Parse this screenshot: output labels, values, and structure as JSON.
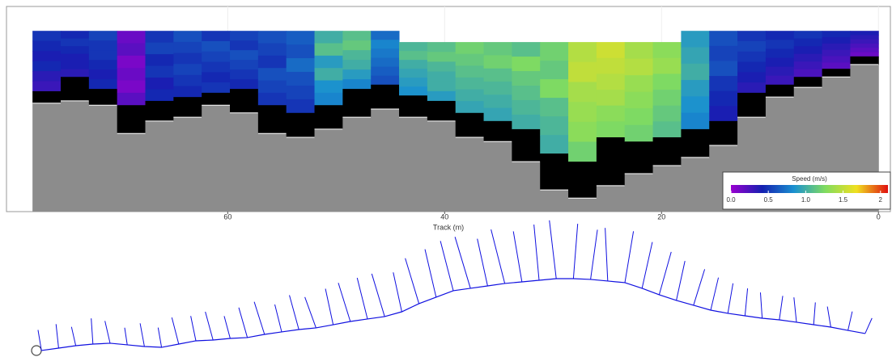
{
  "chart_data": [
    {
      "type": "heatmap",
      "xlabel": "Track (m)",
      "x": [
        76.7,
        74.1,
        71.5,
        68.9,
        66.3,
        63.7,
        61.1,
        58.5,
        55.9,
        53.3,
        50.7,
        48.1,
        45.5,
        42.9,
        40.3,
        37.7,
        35.1,
        32.5,
        29.9,
        27.3,
        24.7,
        22.1,
        19.5,
        16.9,
        14.3,
        11.7,
        9.1,
        6.5,
        3.9,
        1.3
      ],
      "top": [
        0.63,
        0.63,
        0.63,
        0.63,
        0.63,
        0.63,
        0.63,
        0.63,
        0.63,
        0.63,
        0.63,
        0.63,
        0.63,
        0.92,
        0.92,
        0.92,
        0.92,
        0.92,
        0.92,
        0.92,
        0.92,
        0.92,
        0.92,
        0.63,
        0.63,
        0.63,
        0.63,
        0.63,
        0.63,
        0.63
      ],
      "bed": [
        2.19,
        1.82,
        2.13,
        2.55,
        2.44,
        2.34,
        2.23,
        2.13,
        2.55,
        2.75,
        2.55,
        2.13,
        2.02,
        2.3,
        2.44,
        2.75,
        2.96,
        3.17,
        3.8,
        4.01,
        3.38,
        3.49,
        3.38,
        3.17,
        2.96,
        2.23,
        2.02,
        1.82,
        1.61,
        1.29
      ],
      "bottom": [
        2.5,
        2.44,
        2.55,
        3.28,
        2.96,
        2.86,
        2.55,
        2.75,
        3.28,
        3.38,
        3.17,
        2.86,
        2.65,
        2.86,
        2.96,
        3.38,
        3.49,
        4.01,
        4.74,
        4.95,
        4.63,
        4.32,
        4.11,
        3.9,
        3.59,
        2.86,
        2.34,
        2.09,
        1.82,
        1.5
      ],
      "speeds": [
        [
          0.5,
          0.45,
          0.4,
          0.45,
          0.35,
          0.3
        ],
        [
          0.45,
          0.5,
          0.45,
          0.4,
          0.4,
          0.35
        ],
        [
          0.55,
          0.5,
          0.5,
          0.45,
          0.4,
          0.45
        ],
        [
          0.15,
          0.2,
          0.1,
          0.15,
          0.1,
          0.2
        ],
        [
          0.5,
          0.55,
          0.45,
          0.5,
          0.4,
          0.45
        ],
        [
          0.6,
          0.55,
          0.5,
          0.55,
          0.5,
          0.45
        ],
        [
          0.5,
          0.6,
          0.55,
          0.5,
          0.45,
          0.5
        ],
        [
          0.55,
          0.5,
          0.6,
          0.55,
          0.5,
          0.45
        ],
        [
          0.6,
          0.55,
          0.5,
          0.6,
          0.55,
          0.5
        ],
        [
          0.65,
          0.6,
          0.7,
          0.6,
          0.55,
          0.5
        ],
        [
          1.0,
          1.1,
          0.9,
          1.0,
          0.85,
          0.8
        ],
        [
          1.1,
          1.15,
          1.05,
          1.0,
          0.9,
          0.8
        ],
        [
          0.7,
          0.8,
          0.75,
          0.7,
          0.65,
          0.6
        ],
        [
          1.05,
          1.1,
          1.0,
          0.95,
          0.9,
          0.85
        ],
        [
          1.1,
          1.15,
          1.05,
          1.0,
          1.0,
          0.9
        ],
        [
          1.2,
          1.15,
          1.1,
          1.05,
          1.0,
          0.95
        ],
        [
          1.15,
          1.2,
          1.1,
          1.05,
          1.0,
          0.95
        ],
        [
          1.1,
          1.25,
          1.15,
          1.1,
          1.05,
          1.0
        ],
        [
          1.2,
          1.15,
          1.25,
          1.1,
          1.05,
          1.0
        ],
        [
          1.45,
          1.5,
          1.4,
          1.35,
          1.3,
          1.2
        ],
        [
          1.55,
          1.5,
          1.45,
          1.4,
          1.3,
          1.25
        ],
        [
          1.4,
          1.45,
          1.35,
          1.3,
          1.25,
          1.2
        ],
        [
          1.3,
          1.35,
          1.25,
          1.2,
          1.15,
          1.1
        ],
        [
          0.9,
          0.95,
          1.0,
          0.9,
          0.85,
          0.8
        ],
        [
          0.6,
          0.55,
          0.6,
          0.5,
          0.45,
          0.4
        ],
        [
          0.5,
          0.55,
          0.5,
          0.45,
          0.4,
          0.35
        ],
        [
          0.45,
          0.5,
          0.45,
          0.4,
          0.35,
          0.3
        ],
        [
          0.5,
          0.45,
          0.4,
          0.35,
          0.3,
          0.25
        ],
        [
          0.45,
          0.4,
          0.35,
          0.3,
          0.25,
          0.2
        ],
        [
          0.4,
          0.35,
          0.3,
          0.25,
          0.2,
          0.15
        ]
      ],
      "xlim": [
        80.4,
        -1.1
      ],
      "xticks": [
        60,
        40,
        20,
        0
      ],
      "ylim": [
        0,
        5.3
      ],
      "colormap": [
        "#9a00d0",
        "#1420b0",
        "#1a90d0",
        "#80dc60",
        "#f0e020",
        "#e01010"
      ],
      "bed_color": "#000000",
      "ground_color": "#8c8c8c",
      "colorbar": {
        "title": "Speed (m/s)",
        "lim": [
          0,
          2.1
        ],
        "ticks": [
          {
            "value": 0,
            "label": "0.0"
          },
          0.5,
          {
            "value": 1,
            "label": "1.0"
          },
          1.5,
          2
        ]
      }
    },
    {
      "type": "quiver",
      "color": "#1010e0",
      "xlim": [
        0,
        100
      ],
      "ylim": [
        0,
        13.2
      ],
      "x": [
        2,
        4,
        6,
        8,
        10,
        12,
        14,
        16,
        18,
        20,
        22,
        24,
        26,
        28,
        30,
        32,
        34,
        36,
        38,
        40,
        42,
        44,
        46,
        48,
        50,
        52,
        54,
        56,
        58,
        60,
        62,
        64,
        66,
        68,
        70,
        72,
        74,
        76,
        78,
        80,
        82,
        84,
        86,
        88,
        90,
        92,
        94,
        96,
        98
      ],
      "y": [
        0.57,
        0.85,
        1.13,
        1.32,
        1.42,
        1.23,
        1.04,
        0.94,
        1.32,
        1.7,
        1.79,
        1.98,
        2.08,
        2.45,
        2.74,
        3.02,
        3.21,
        3.58,
        3.96,
        4.25,
        4.53,
        5.09,
        6.04,
        6.79,
        7.55,
        7.83,
        8.11,
        8.4,
        8.58,
        8.77,
        8.96,
        8.96,
        8.87,
        8.68,
        8.49,
        7.83,
        7.08,
        6.42,
        5.85,
        5.28,
        4.91,
        4.62,
        4.34,
        4.15,
        3.87,
        3.58,
        3.3,
        2.92,
        2.55
      ],
      "u": [
        -0.4,
        -0.3,
        -0.5,
        -0.2,
        -0.6,
        -0.3,
        -0.5,
        -0.4,
        -0.8,
        -0.6,
        -0.9,
        -0.7,
        -1.0,
        -1.2,
        -0.8,
        -1.1,
        -1.3,
        -0.9,
        -1.4,
        -1.2,
        -1.5,
        -1.0,
        -1.6,
        -1.3,
        -1.5,
        -1.8,
        -1.2,
        -1.6,
        -1.0,
        -0.6,
        -0.8,
        0.5,
        0.8,
        -0.3,
        1.0,
        1.2,
        1.4,
        1.0,
        1.3,
        0.9,
        0.6,
        0.3,
        -0.2,
        0.4,
        -0.3,
        0.2,
        -0.4,
        0.5,
        0.8
      ],
      "v": [
        2.4,
        2.8,
        2.2,
        3.0,
        2.6,
        2.0,
        2.7,
        2.3,
        3.1,
        2.9,
        3.3,
        2.6,
        3.5,
        3.8,
        3.2,
        4.0,
        3.6,
        4.2,
        4.5,
        4.8,
        5.0,
        4.6,
        5.3,
        5.6,
        5.8,
        6.0,
        5.5,
        6.3,
        5.9,
        6.5,
        6.8,
        6.4,
        5.8,
        6.2,
        6.0,
        5.4,
        5.0,
        4.6,
        4.2,
        3.8,
        3.5,
        3.2,
        3.0,
        2.8,
        2.9,
        2.6,
        2.4,
        2.2,
        1.8
      ]
    }
  ]
}
